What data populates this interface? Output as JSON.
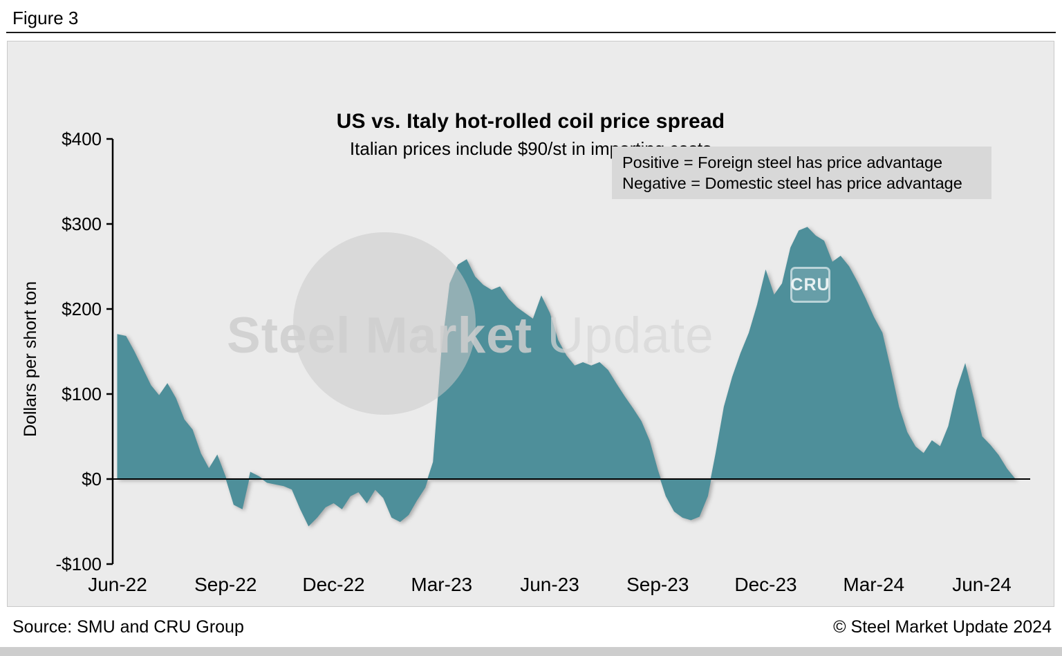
{
  "figure": {
    "label": "Figure 3"
  },
  "chart": {
    "title": "US vs. Italy hot-rolled coil price spread",
    "subtitle": "Italian prices include $90/st in importing costs",
    "legend_line1": "Positive = Foreign steel has price advantage",
    "legend_line2": "Negative = Domestic steel has price advantage",
    "y_axis_title": "Dollars per short ton",
    "watermark_bold": "Steel Market",
    "watermark_light": " Update",
    "watermark_badge": "CRU"
  },
  "footer": {
    "source": "Source: SMU and CRU Group",
    "copyright": "© Steel Market Update 2024"
  },
  "chart_data": {
    "type": "area",
    "title": "US vs. Italy hot-rolled coil price spread",
    "subtitle": "Italian prices include $90/st in importing costs",
    "series_name": "US minus Italy HRC price spread (Italian price includes $90/st importing costs)",
    "ylabel": "Dollars per short ton",
    "unit": "USD per short ton",
    "ylim": [
      -100,
      400
    ],
    "y_ticks": [
      400,
      300,
      200,
      100,
      0,
      -100
    ],
    "y_tick_labels": [
      "$400",
      "$300",
      "$200",
      "$100",
      "$0",
      "-$100"
    ],
    "x_tick_labels": [
      "Jun-22",
      "Sep-22",
      "Dec-22",
      "Mar-23",
      "Jun-23",
      "Sep-23",
      "Dec-23",
      "Mar-24",
      "Jun-24"
    ],
    "frequency": "weekly",
    "points_per_tick_interval": 13,
    "zero_line": true,
    "grid": false,
    "legend_position": "top-right",
    "fill_color": "#4e8f9a",
    "values": [
      170,
      168,
      150,
      130,
      110,
      98,
      112,
      95,
      70,
      58,
      30,
      12,
      28,
      2,
      -30,
      -35,
      8,
      3,
      -4,
      -6,
      -8,
      -12,
      -35,
      -55,
      -45,
      -33,
      -28,
      -35,
      -20,
      -15,
      -28,
      -12,
      -22,
      -45,
      -50,
      -42,
      -25,
      -10,
      20,
      150,
      230,
      252,
      258,
      238,
      228,
      222,
      226,
      212,
      202,
      195,
      188,
      215,
      195,
      163,
      145,
      133,
      137,
      133,
      137,
      128,
      112,
      97,
      83,
      68,
      45,
      10,
      -20,
      -38,
      -45,
      -48,
      -44,
      -20,
      30,
      85,
      120,
      148,
      172,
      205,
      245,
      216,
      230,
      272,
      292,
      296,
      286,
      280,
      255,
      262,
      250,
      232,
      212,
      190,
      172,
      130,
      85,
      55,
      38,
      30,
      45,
      38,
      62,
      105,
      135,
      95,
      50,
      40,
      28,
      12,
      0
    ]
  }
}
